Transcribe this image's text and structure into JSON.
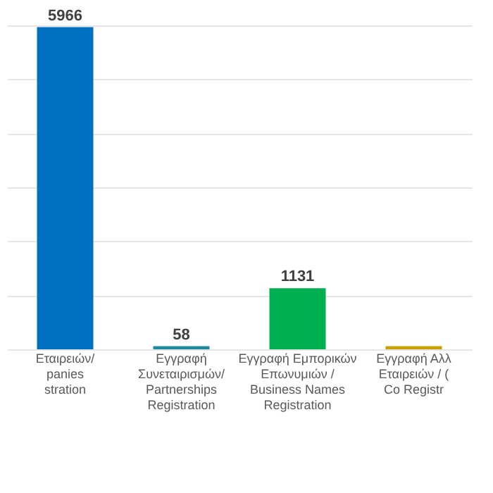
{
  "chart_data": {
    "type": "bar",
    "categories": [
      "Εταιρειών/\npanies\nstration",
      "Εγγραφή\nΣυνεταιρισμών/\nPartnerships\nRegistration",
      "Εγγραφή Εμπορικών\nΕπωνυμιών /\nBusiness Names\nRegistration",
      "Εγγραφή Αλλ\nΕταιρειών / (\nCo Registr"
    ],
    "values": [
      5966,
      58,
      1131,
      60
    ],
    "colors": [
      "#0070c0",
      "#1f8a9e",
      "#00b050",
      "#c9a000"
    ],
    "value_labels": [
      "5966",
      "58",
      "1131",
      null
    ],
    "tick_labels": "x",
    "grid": "y"
  }
}
